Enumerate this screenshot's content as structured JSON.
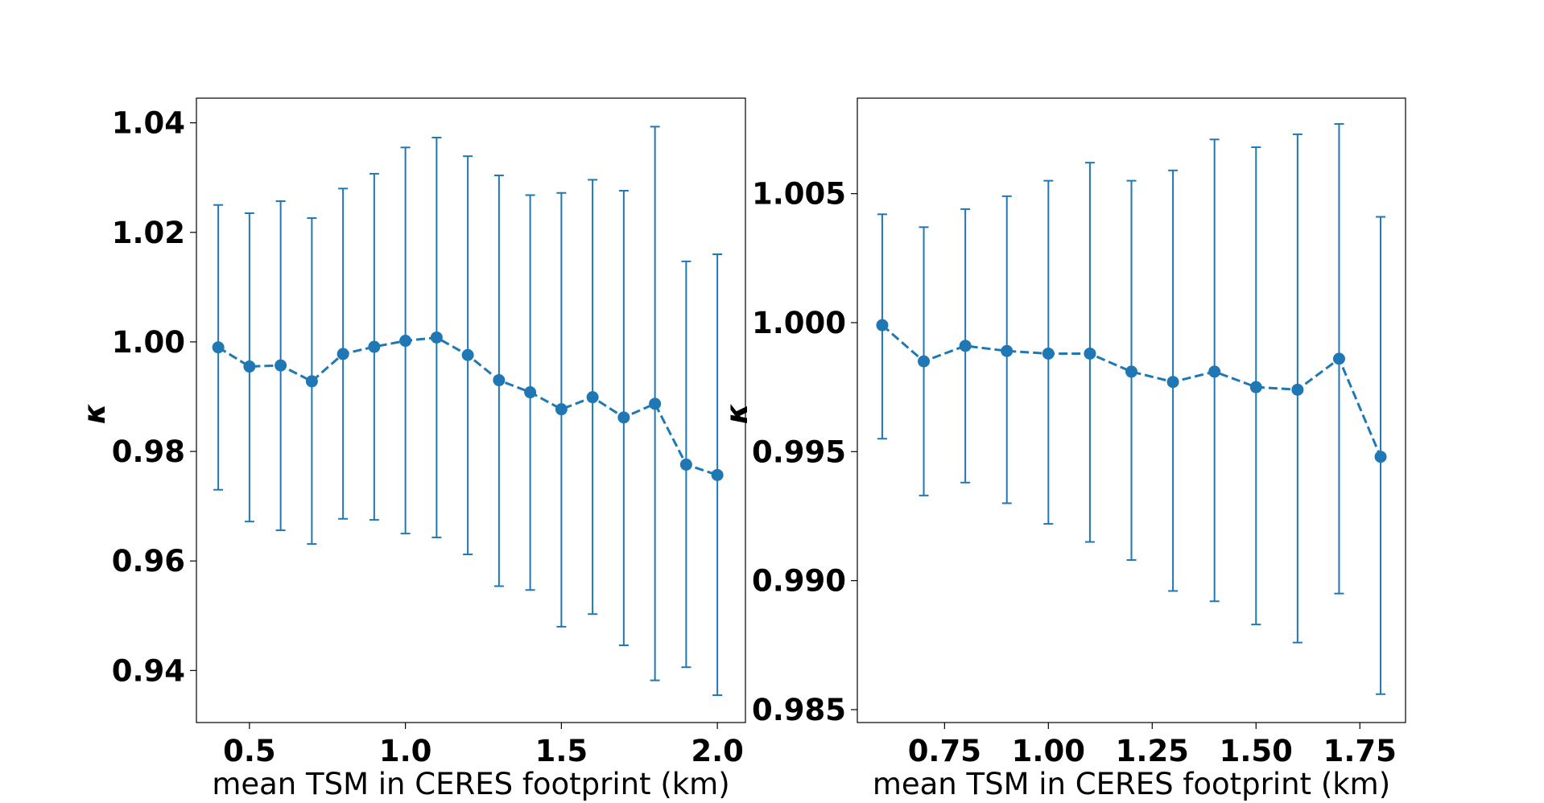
{
  "chart_data": [
    {
      "type": "line",
      "style": "errorbar",
      "xlabel": "mean TSM in CERES footprint (km)",
      "ylabel": "κ",
      "xlim": [
        0.33,
        2.09
      ],
      "ylim": [
        0.9305,
        1.0445
      ],
      "xticks": [
        0.5,
        1.0,
        1.5,
        2.0
      ],
      "xtick_labels": [
        "0.5",
        "1.0",
        "1.5",
        "2.0"
      ],
      "yticks": [
        0.94,
        0.96,
        0.98,
        1.0,
        1.02,
        1.04
      ],
      "ytick_labels": [
        "0.94",
        "0.96",
        "0.98",
        "1.00",
        "1.02",
        "1.04"
      ],
      "grid": false,
      "color": "#1f77b4",
      "x": [
        0.4,
        0.5,
        0.6,
        0.7,
        0.8,
        0.9,
        1.0,
        1.1,
        1.2,
        1.3,
        1.4,
        1.5,
        1.6,
        1.7,
        1.8,
        1.9,
        2.0
      ],
      "y": [
        0.999,
        0.9955,
        0.9957,
        0.9928,
        0.9978,
        0.9991,
        1.0002,
        1.0008,
        0.9976,
        0.993,
        0.9908,
        0.9877,
        0.9899,
        0.9862,
        0.9887,
        0.9776,
        0.9757
      ],
      "yerr_low": [
        0.973,
        0.9672,
        0.9656,
        0.9631,
        0.9677,
        0.9675,
        0.965,
        0.9643,
        0.9612,
        0.9554,
        0.9547,
        0.948,
        0.9503,
        0.9446,
        0.9382,
        0.9406,
        0.9355
      ],
      "yerr_high": [
        1.025,
        1.0235,
        1.0257,
        1.0226,
        1.028,
        1.0307,
        1.0355,
        1.0373,
        1.0339,
        1.0304,
        1.0268,
        1.0272,
        1.0296,
        1.0276,
        1.0393,
        1.0147,
        1.016
      ]
    },
    {
      "type": "line",
      "style": "errorbar",
      "xlabel": "mean TSM in CERES footprint (km)",
      "ylabel": "κ",
      "xlim": [
        0.54,
        1.86
      ],
      "ylim": [
        0.9845,
        1.0087
      ],
      "xticks": [
        0.75,
        1.0,
        1.25,
        1.5,
        1.75
      ],
      "xtick_labels": [
        "0.75",
        "1.00",
        "1.25",
        "1.50",
        "1.75"
      ],
      "yticks": [
        0.985,
        0.99,
        0.995,
        1.0,
        1.005
      ],
      "ytick_labels": [
        "0.985",
        "0.990",
        "0.995",
        "1.000",
        "1.005"
      ],
      "grid": false,
      "color": "#1f77b4",
      "x": [
        0.6,
        0.7,
        0.8,
        0.9,
        1.0,
        1.1,
        1.2,
        1.3,
        1.4,
        1.5,
        1.6,
        1.7,
        1.8
      ],
      "y": [
        0.9999,
        0.9985,
        0.9991,
        0.9989,
        0.9988,
        0.9988,
        0.9981,
        0.9977,
        0.9981,
        0.9975,
        0.9974,
        0.9986,
        0.9948
      ],
      "yerr_low": [
        0.9955,
        0.9933,
        0.9938,
        0.993,
        0.9922,
        0.9915,
        0.9908,
        0.9896,
        0.9892,
        0.9883,
        0.9876,
        0.9895,
        0.9856
      ],
      "yerr_high": [
        1.0042,
        1.0037,
        1.0044,
        1.0049,
        1.0055,
        1.0062,
        1.0055,
        1.0059,
        1.0071,
        1.0068,
        1.0073,
        1.0077,
        1.0041
      ]
    }
  ]
}
